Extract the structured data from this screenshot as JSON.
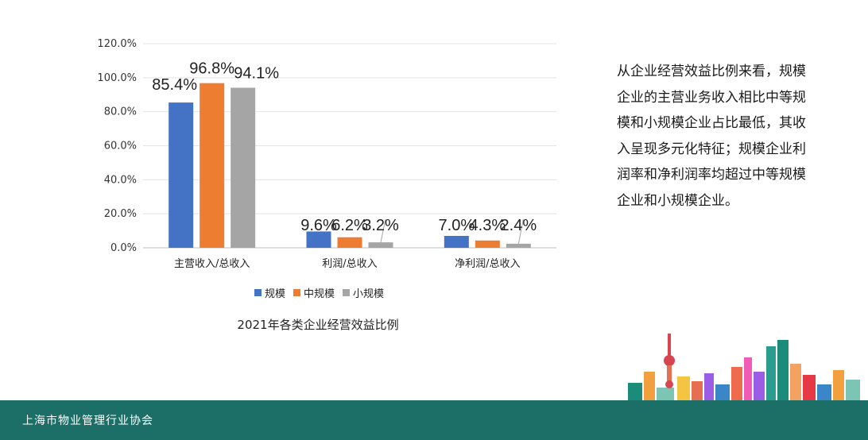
{
  "chart_data": {
    "type": "bar",
    "title": "2021年各类企业经营效益比例",
    "categories": [
      "主营收入/总收入",
      "利润/总收入",
      "净利润/总收入"
    ],
    "series": [
      {
        "name": "规模",
        "color": "#4472c4",
        "values": [
          85.4,
          9.6,
          7.0
        ],
        "labels": [
          "85.4%",
          "9.6%",
          "7.0%"
        ]
      },
      {
        "name": "中规模",
        "color": "#ed7d31",
        "values": [
          96.8,
          6.2,
          4.3
        ],
        "labels": [
          "96.8%",
          "6.2%",
          "4.3%"
        ]
      },
      {
        "name": "小规模",
        "color": "#a5a5a5",
        "values": [
          94.1,
          3.2,
          2.4
        ],
        "labels": [
          "94.1%",
          "3.2%",
          "2.4%"
        ]
      }
    ],
    "ylim": [
      0,
      120
    ],
    "yticks": [
      "0.0%",
      "20.0%",
      "40.0%",
      "60.0%",
      "80.0%",
      "100.0%",
      "120.0%"
    ],
    "grid": true,
    "legend_position": "bottom"
  },
  "side_text": "从企业经营效益比例来看，规模企业的主营业务收入相比中等规模和小规模企业占比最低，其收入呈现多元化特征；规模企业利润率和净利润率均超过中等规模企业和小规模企业。",
  "footer": {
    "org_name": "上海市物业管理行业协会",
    "color": "#1c6f66"
  }
}
